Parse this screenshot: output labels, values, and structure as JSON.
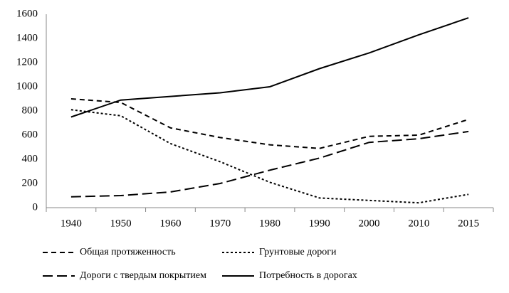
{
  "chart_data": {
    "type": "line",
    "categories": [
      "1940",
      "1950",
      "1960",
      "1970",
      "1980",
      "1990",
      "2000",
      "2010",
      "2015"
    ],
    "series": [
      {
        "name": "Общая протяженность",
        "color": "#000000",
        "dash": "7,5",
        "values": [
          900,
          870,
          660,
          580,
          520,
          490,
          590,
          600,
          730
        ]
      },
      {
        "name": "Грунтовые дороги",
        "color": "#000000",
        "dash": "3,3",
        "values": [
          810,
          760,
          530,
          380,
          210,
          80,
          60,
          40,
          110
        ]
      },
      {
        "name": "Дороги с твердым покрытием",
        "color": "#000000",
        "dash": "14,6",
        "values": [
          90,
          100,
          130,
          200,
          310,
          410,
          540,
          570,
          630
        ]
      },
      {
        "name": "Потребность в дорогах",
        "color": "#000000",
        "dash": "none",
        "values": [
          750,
          890,
          920,
          950,
          1000,
          1150,
          1280,
          1430,
          1570
        ]
      }
    ],
    "ylim": [
      0,
      1600
    ],
    "yticks": [
      0,
      200,
      400,
      600,
      800,
      1000,
      1200,
      1400,
      1600
    ],
    "grid": false
  }
}
